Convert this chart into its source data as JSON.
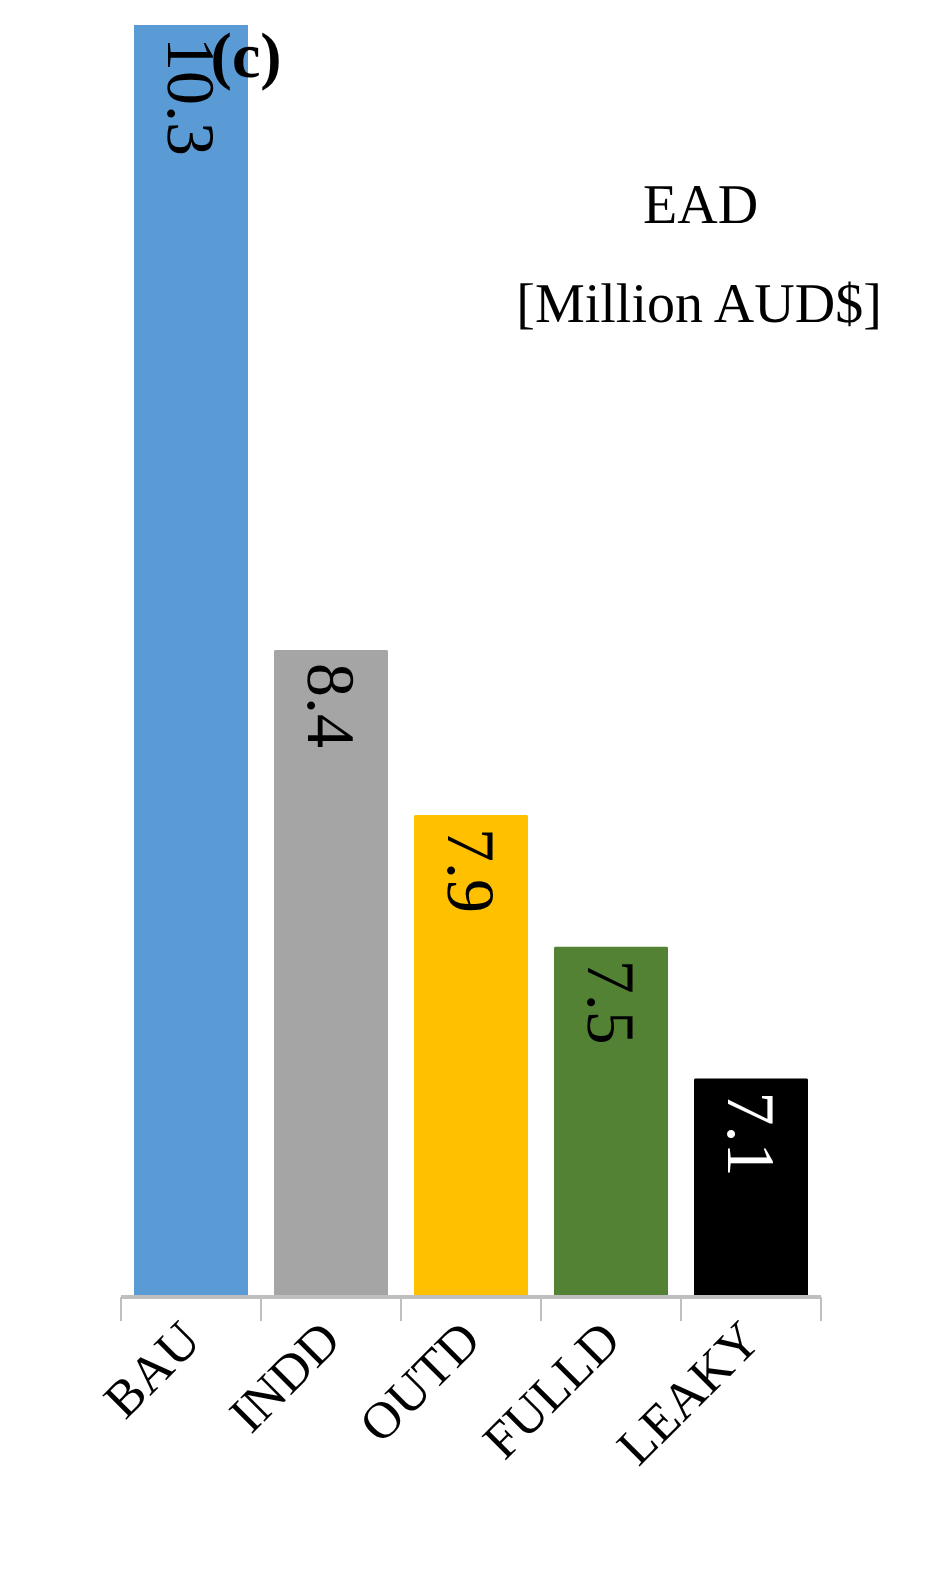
{
  "chart_data": {
    "type": "bar",
    "title": "(c)",
    "annotations": [
      "EAD\n[Million AUD$]"
    ],
    "categories": [
      "BAU",
      "INDD",
      "OUTD",
      "FULLD",
      "LEAKY"
    ],
    "values": [
      10.3,
      8.4,
      7.9,
      7.5,
      7.1
    ],
    "colors": [
      "#5b9bd5",
      "#a5a5a5",
      "#ffc000",
      "#548235",
      "#000000"
    ],
    "ylim": [
      6.44,
      10.3
    ],
    "data_labels": true,
    "tick_labels": "x"
  }
}
